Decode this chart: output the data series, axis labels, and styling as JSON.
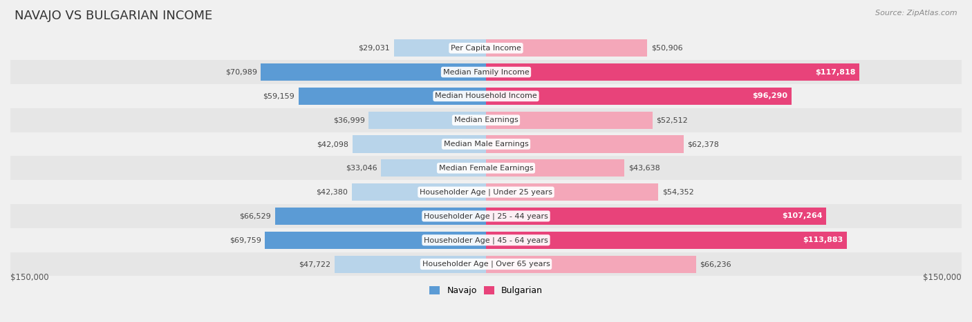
{
  "title": "NAVAJO VS BULGARIAN INCOME",
  "source": "Source: ZipAtlas.com",
  "categories": [
    "Per Capita Income",
    "Median Family Income",
    "Median Household Income",
    "Median Earnings",
    "Median Male Earnings",
    "Median Female Earnings",
    "Householder Age | Under 25 years",
    "Householder Age | 25 - 44 years",
    "Householder Age | 45 - 64 years",
    "Householder Age | Over 65 years"
  ],
  "navajo": [
    29031,
    70989,
    59159,
    36999,
    42098,
    33046,
    42380,
    66529,
    69759,
    47722
  ],
  "bulgarian": [
    50906,
    117818,
    96290,
    52512,
    62378,
    43638,
    54352,
    107264,
    113883,
    66236
  ],
  "navajo_colors": [
    "#b8d4ea",
    "#5b9bd5",
    "#5b9bd5",
    "#b8d4ea",
    "#b8d4ea",
    "#b8d4ea",
    "#b8d4ea",
    "#5b9bd5",
    "#5b9bd5",
    "#b8d4ea"
  ],
  "bulgarian_colors": [
    "#f4a7b9",
    "#e8437a",
    "#e8437a",
    "#f4a7b9",
    "#f4a7b9",
    "#f4a7b9",
    "#f4a7b9",
    "#e8437a",
    "#e8437a",
    "#f4a7b9"
  ],
  "bulgarian_label_white": [
    1,
    2,
    7,
    8
  ],
  "max_val": 150000,
  "row_colors": [
    "#f0f0f0",
    "#e6e6e6"
  ],
  "label_fontsize": 8.5,
  "title_fontsize": 13,
  "axis_label": "$150,000",
  "legend_navajo_color": "#5b9bd5",
  "legend_bulgarian_color": "#e8437a"
}
